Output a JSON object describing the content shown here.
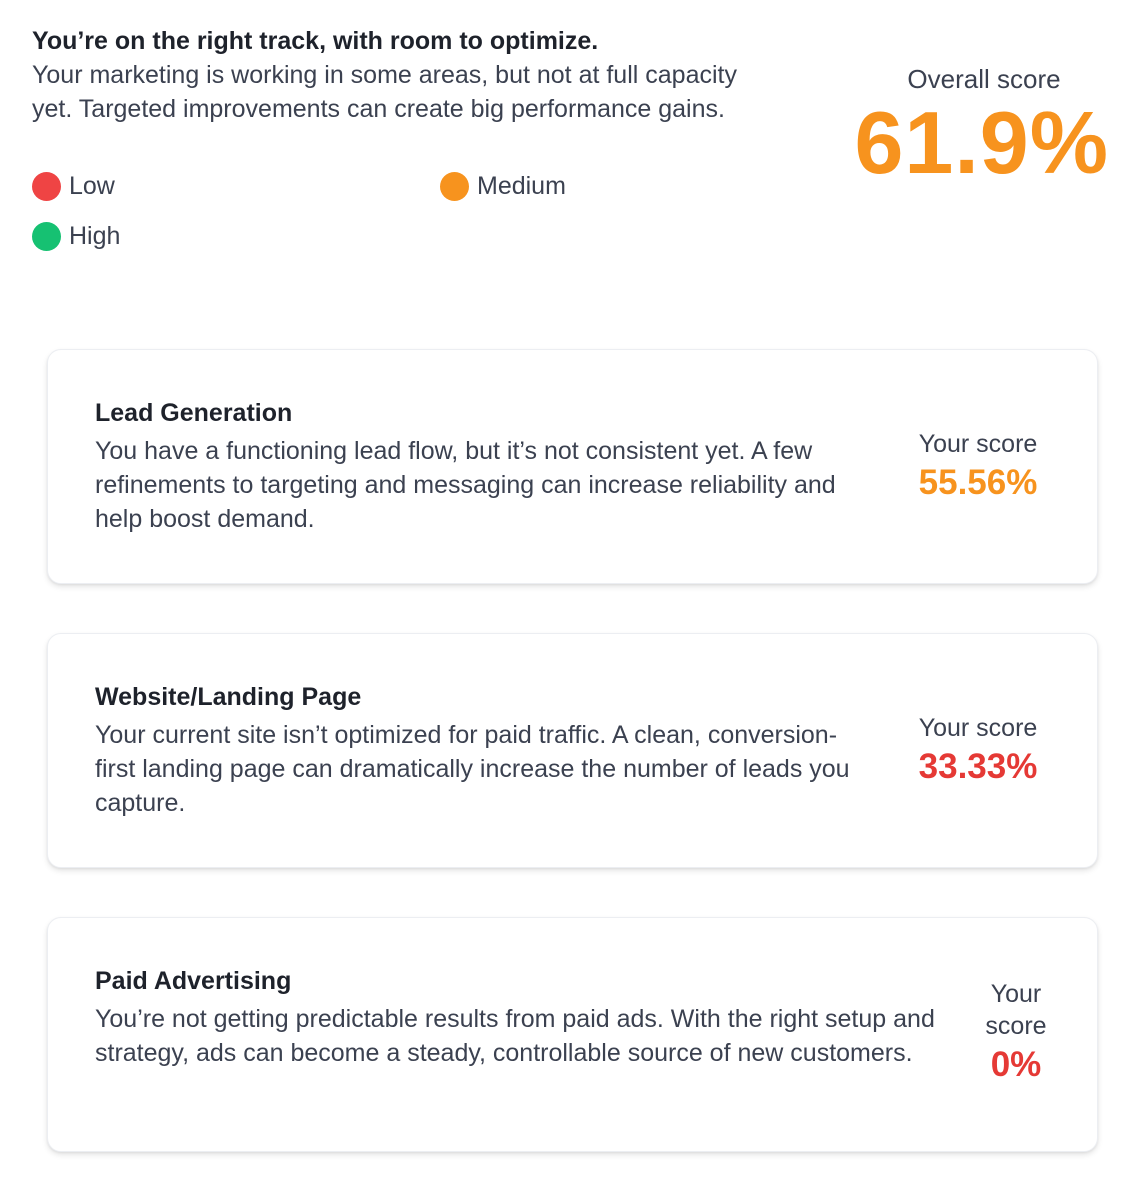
{
  "summary": {
    "title": "You’re on the right track, with room to optimize.",
    "text": "Your marketing is working in some areas, but not at full capacity yet. Targeted improvements can create big performance gains."
  },
  "legend": [
    {
      "label": "Low",
      "color": "#ef4444"
    },
    {
      "label": "Medium",
      "color": "#f7931e"
    },
    {
      "label": "High",
      "color": "#16c172"
    }
  ],
  "overall": {
    "label": "Overall score",
    "value": "61.9%",
    "color": "#f7931e"
  },
  "cards": [
    {
      "title": "Lead Generation",
      "description": "You have a functioning lead flow, but it’s not consistent yet. A few refinements to targeting and messaging can increase reliability and help boost demand.",
      "score_label": "Your score",
      "score_value": "55.56%",
      "score_color": "#f7931e"
    },
    {
      "title": "Website/Landing Page",
      "description": "Your current site isn’t optimized for paid traffic. A clean, conversion-first landing page can dramatically increase the number of leads you capture.",
      "score_label": "Your score",
      "score_value": "33.33%",
      "score_color": "#e53935"
    },
    {
      "title": "Paid Advertising",
      "description": "You’re not getting predictable results from paid ads. With the right setup and strategy, ads can become a steady, controllable source of new customers.",
      "score_label": "Your score",
      "score_value": "0%",
      "score_color": "#e53935"
    }
  ]
}
